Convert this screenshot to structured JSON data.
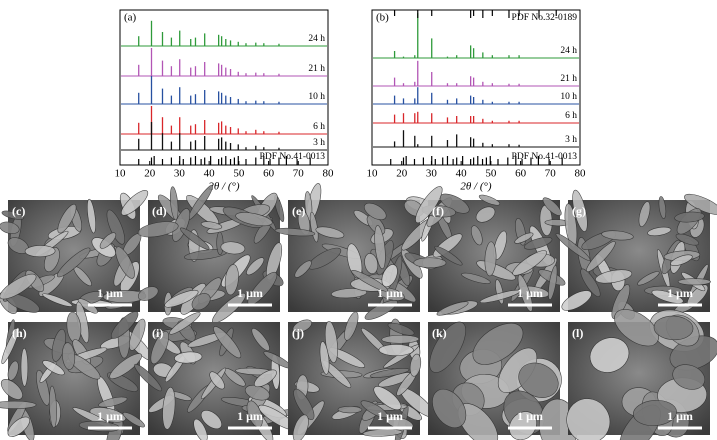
{
  "figure": {
    "xrd_panels": [
      {
        "label": "(a)",
        "xlabel": "2θ / (°)",
        "xlim": [
          10,
          80
        ],
        "xticks": [
          10,
          20,
          30,
          40,
          50,
          60,
          70,
          80
        ],
        "peaks_x": [
          16.3,
          20.6,
          24.3,
          27.3,
          30.1,
          33.8,
          35.4,
          38.5,
          43.2,
          44.2,
          45.6,
          47.2,
          49.8,
          52.4,
          55.7,
          58.4,
          63.5
        ],
        "series": [
          {
            "name": "24 h",
            "color": "#2e9a3a",
            "values": [
              0.35,
              0.9,
              0.5,
              0.3,
              0.55,
              0.25,
              0.3,
              0.45,
              0.4,
              0.35,
              0.25,
              0.2,
              0.15,
              0.1,
              0.12,
              0.1,
              0.08
            ]
          },
          {
            "name": "21 h",
            "color": "#b255b5",
            "values": [
              0.4,
              1.0,
              0.55,
              0.35,
              0.6,
              0.3,
              0.35,
              0.5,
              0.45,
              0.4,
              0.3,
              0.25,
              0.15,
              0.1,
              0.12,
              0.1,
              0.08
            ]
          },
          {
            "name": "10 h",
            "color": "#2750a0",
            "values": [
              0.4,
              1.0,
              0.55,
              0.3,
              0.6,
              0.3,
              0.35,
              0.5,
              0.45,
              0.4,
              0.3,
              0.25,
              0.18,
              0.1,
              0.12,
              0.1,
              0.08
            ]
          },
          {
            "name": "6 h",
            "color": "#d8262a",
            "values": [
              0.4,
              1.0,
              0.6,
              0.3,
              0.6,
              0.3,
              0.35,
              0.5,
              0.4,
              0.45,
              0.3,
              0.25,
              0.2,
              0.1,
              0.15,
              0.1,
              0.08
            ]
          },
          {
            "name": "3 h",
            "color": "#111111",
            "values": [
              0.4,
              1.0,
              0.6,
              0.3,
              0.6,
              0.3,
              0.35,
              0.5,
              0.4,
              0.45,
              0.3,
              0.25,
              0.2,
              0.1,
              0.15,
              0.1,
              0.08
            ]
          }
        ],
        "reference": {
          "label": "PDF No.41-0013",
          "x": [
            16.3,
            20.6,
            21.5,
            24.3,
            27.3,
            30.1,
            31.3,
            33.8,
            35.4,
            37.3,
            38.5,
            40.5,
            43.2,
            44.2,
            45.6,
            47.2,
            48.5,
            49.8,
            52.4,
            55.7,
            58.4,
            60.5,
            63.5,
            66,
            69.6,
            74
          ]
        }
      },
      {
        "label": "(b)",
        "xlabel": "2θ / (°)",
        "xlim": [
          10,
          80
        ],
        "xticks": [
          10,
          20,
          30,
          40,
          50,
          60,
          70,
          80
        ],
        "peaks_x": [
          17.6,
          20.6,
          24.4,
          25.4,
          30.1,
          35.4,
          38.5,
          43.2,
          44.2,
          47.3,
          50.5,
          56.1,
          59.5
        ],
        "series": [
          {
            "name": "24 h",
            "color": "#2e9a3a",
            "values": [
              0.25,
              0.05,
              0.1,
              1.6,
              0.7,
              0.05,
              0.1,
              0.45,
              0.35,
              0.2,
              0.1,
              0.1,
              0.1
            ]
          },
          {
            "name": "21 h",
            "color": "#b255b5",
            "values": [
              0.3,
              0.1,
              0.15,
              0.9,
              0.5,
              0.1,
              0.1,
              0.35,
              0.3,
              0.15,
              0.1,
              0.08,
              0.08
            ]
          },
          {
            "name": "10 h",
            "color": "#2750a0",
            "values": [
              0.3,
              0.2,
              0.2,
              0.6,
              0.4,
              0.15,
              0.2,
              0.3,
              0.25,
              0.15,
              0.08,
              0.08,
              0.08
            ]
          },
          {
            "name": "6 h",
            "color": "#d8262a",
            "values": [
              0.3,
              0.35,
              0.35,
              0.4,
              0.35,
              0.2,
              0.25,
              0.25,
              0.25,
              0.15,
              0.08,
              0.08,
              0.08
            ]
          },
          {
            "name": "3 h",
            "color": "#111111",
            "values": [
              0.2,
              0.6,
              0.4,
              0.1,
              0.4,
              0.25,
              0.45,
              0.35,
              0.3,
              0.15,
              0.1,
              0.1,
              0.08
            ]
          }
        ],
        "reference_top": {
          "label": "PDF No.32-0189",
          "x": [
            17.6,
            25.4,
            30.1,
            43.2,
            44.2,
            47.3,
            50.5,
            56.1,
            59.5,
            66.2,
            72
          ]
        },
        "reference": {
          "label": "PDF No.41-0013",
          "x": [
            16.3,
            20.6,
            21.5,
            24.3,
            27.3,
            30.1,
            31.3,
            33.8,
            35.4,
            37.3,
            38.5,
            40.5,
            43.2,
            44.2,
            45.6,
            47.2,
            48.5,
            49.8,
            52.4,
            55.7,
            58.4,
            60.5,
            63.5,
            66,
            69.6,
            74
          ]
        }
      }
    ],
    "sem_images": [
      {
        "label": "(c)",
        "scale": "1 μm"
      },
      {
        "label": "(d)",
        "scale": "1 μm"
      },
      {
        "label": "(e)",
        "scale": "1 μm"
      },
      {
        "label": "(f)",
        "scale": "1 μm"
      },
      {
        "label": "(g)",
        "scale": "1 μm"
      },
      {
        "label": "(h)",
        "scale": "1 μm"
      },
      {
        "label": "(i)",
        "scale": "1 μm"
      },
      {
        "label": "(j)",
        "scale": "1 μm"
      },
      {
        "label": "(k)",
        "scale": "1 μm"
      },
      {
        "label": "(l)",
        "scale": "1 μm"
      }
    ]
  }
}
